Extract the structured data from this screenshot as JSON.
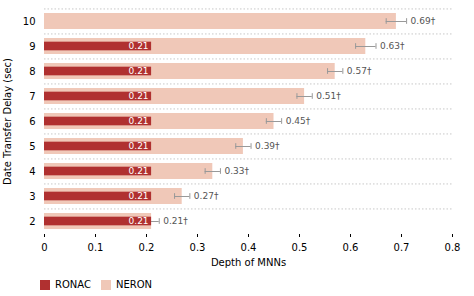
{
  "chart_data": {
    "type": "bar",
    "orientation": "horizontal",
    "xlabel": "Depth of MNNs",
    "ylabel": "Date Transfer Delay (sec)",
    "categories": [
      2,
      3,
      4,
      5,
      6,
      7,
      8,
      9,
      10
    ],
    "series": [
      {
        "name": "RONAC",
        "color": "#b03030",
        "values": [
          0.21,
          0.21,
          0.21,
          0.21,
          0.21,
          0.21,
          0.21,
          0.21,
          null
        ]
      },
      {
        "name": "NERON",
        "color": "#f0c8b8",
        "values": [
          0.21,
          0.27,
          0.33,
          0.39,
          0.45,
          0.51,
          0.57,
          0.63,
          0.69
        ],
        "errors": [
          0.015,
          0.015,
          0.015,
          0.015,
          0.015,
          0.015,
          0.015,
          0.02,
          0.02
        ],
        "value_labels": [
          "0.21†",
          "0.27†",
          "0.33†",
          "0.39†",
          "0.45†",
          "0.51†",
          "0.57†",
          "0.63†",
          "0.69†"
        ]
      }
    ],
    "xlim": [
      0,
      0.8
    ],
    "xticks": [
      0,
      0.1,
      0.2,
      0.3,
      0.4,
      0.5,
      0.6,
      0.7,
      0.8
    ],
    "grid": true,
    "legend": "bottom",
    "data_labels": true
  }
}
